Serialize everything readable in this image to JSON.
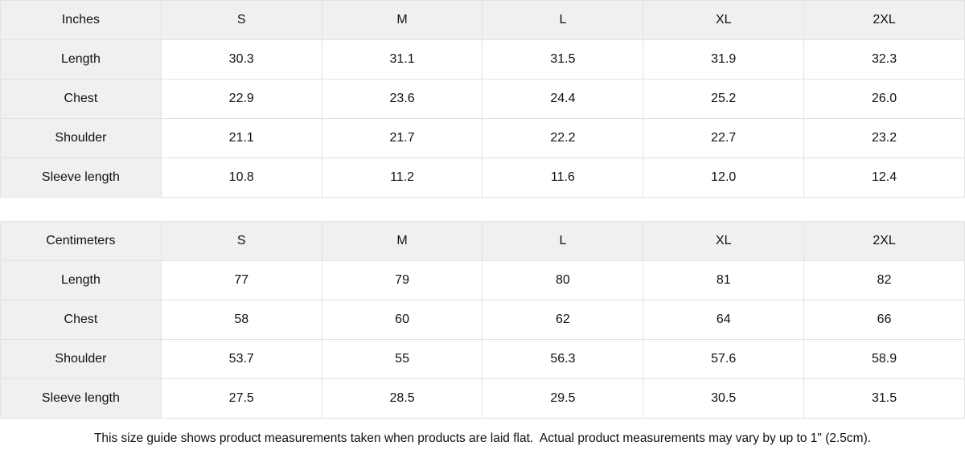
{
  "colors": {
    "cell_background": "#f0f0f0",
    "border": "#e2e2e2",
    "text": "#111111",
    "page_background": "#ffffff"
  },
  "size_tables": [
    {
      "unit_label": "Inches",
      "sizes": [
        "S",
        "M",
        "L",
        "XL",
        "2XL"
      ],
      "rows": [
        {
          "label": "Length",
          "values": [
            "30.3",
            "31.1",
            "31.5",
            "31.9",
            "32.3"
          ]
        },
        {
          "label": "Chest",
          "values": [
            "22.9",
            "23.6",
            "24.4",
            "25.2",
            "26.0"
          ]
        },
        {
          "label": "Shoulder",
          "values": [
            "21.1",
            "21.7",
            "22.2",
            "22.7",
            "23.2"
          ]
        },
        {
          "label": "Sleeve length",
          "values": [
            "10.8",
            "11.2",
            "11.6",
            "12.0",
            "12.4"
          ]
        }
      ]
    },
    {
      "unit_label": "Centimeters",
      "sizes": [
        "S",
        "M",
        "L",
        "XL",
        "2XL"
      ],
      "rows": [
        {
          "label": "Length",
          "values": [
            "77",
            "79",
            "80",
            "81",
            "82"
          ]
        },
        {
          "label": "Chest",
          "values": [
            "58",
            "60",
            "62",
            "64",
            "66"
          ]
        },
        {
          "label": "Shoulder",
          "values": [
            "53.7",
            "55",
            "56.3",
            "57.6",
            "58.9"
          ]
        },
        {
          "label": "Sleeve length",
          "values": [
            "27.5",
            "28.5",
            "29.5",
            "30.5",
            "31.5"
          ]
        }
      ]
    }
  ],
  "footer_note": "This size guide shows product measurements taken when products are laid flat.  Actual product measurements may vary by up to 1\" (2.5cm)."
}
